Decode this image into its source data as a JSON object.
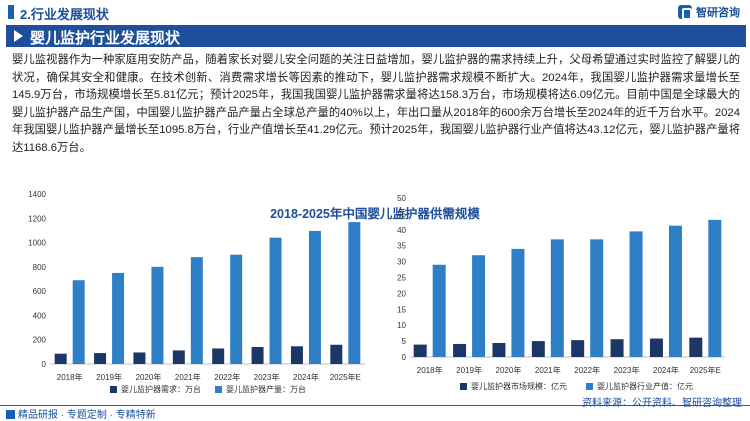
{
  "header": {
    "section_title": "2.行业发展现状",
    "logo_text": "智研咨询"
  },
  "banner": {
    "title": "婴儿监护行业发展现状"
  },
  "paragraph": "婴儿监视器作为一种家庭用安防产品，随着家长对婴儿安全问题的关注日益增加，婴儿监护器的需求持续上升，父母希望通过实时监控了解婴儿的状况，确保其安全和健康。在技术创新、消费需求增长等因素的推动下，婴儿监护器需求规模不断扩大。2024年，我国婴儿监护器需求量增长至145.9万台，市场规模增长至5.81亿元；预计2025年，我国我国婴儿监护器需求量将达158.3万台，市场规模将达6.09亿元。目前中国是全球最大的婴儿监护器产品生产国，中国婴儿监护器产品产量占全球总产量的40%以上，年出口量从2018年的600余万台增长至2024年的近千万台水平。2024年我国婴儿监护器产量增长至1095.8万台，行业产值增长至41.29亿元。预计2025年，我国婴儿监护器行业产值将达43.12亿元，婴儿监护器产量将达1168.6万台。",
  "footer": {
    "left": "精品研报 · 专题定制 · 专精特新",
    "source": "资料来源：公开资料、智研咨询整理"
  },
  "colors": {
    "dark": "#1c3766",
    "light": "#2f7fc6",
    "brand": "#1d4f9a"
  },
  "chart_data": [
    {
      "type": "bar",
      "title": "2018-2025年中国婴儿监护器供需规模",
      "categories": [
        "2018年",
        "2019年",
        "2020年",
        "2021年",
        "2022年",
        "2023年",
        "2024年",
        "2025年E"
      ],
      "ylim": [
        0,
        1400
      ],
      "yticks": [
        0,
        200,
        400,
        600,
        800,
        1000,
        1200,
        1400
      ],
      "grid": false,
      "legend": "bottom",
      "series": [
        {
          "name": "婴儿监护器需求：万台",
          "values": [
            85,
            90,
            95,
            112,
            128,
            140,
            145.9,
            158.3
          ]
        },
        {
          "name": "婴儿监护器产量：万台",
          "values": [
            690,
            750,
            800,
            880,
            900,
            1040,
            1095.8,
            1168.6
          ]
        }
      ]
    },
    {
      "type": "bar",
      "categories": [
        "2018年",
        "2019年",
        "2020年",
        "2021年",
        "2022年",
        "2023年",
        "2024年",
        "2025年E"
      ],
      "ylim": [
        0,
        50
      ],
      "yticks": [
        0,
        5,
        10,
        15,
        20,
        25,
        30,
        35,
        40,
        45,
        50
      ],
      "grid": false,
      "legend": "bottom",
      "series": [
        {
          "name": "婴儿监护器市场规模：亿元",
          "values": [
            3.9,
            4.1,
            4.4,
            5.0,
            5.3,
            5.6,
            5.81,
            6.09
          ]
        },
        {
          "name": "婴儿监护器行业产值：亿元",
          "values": [
            29,
            32,
            34,
            37,
            37,
            39.5,
            41.29,
            43.12
          ]
        }
      ]
    }
  ]
}
